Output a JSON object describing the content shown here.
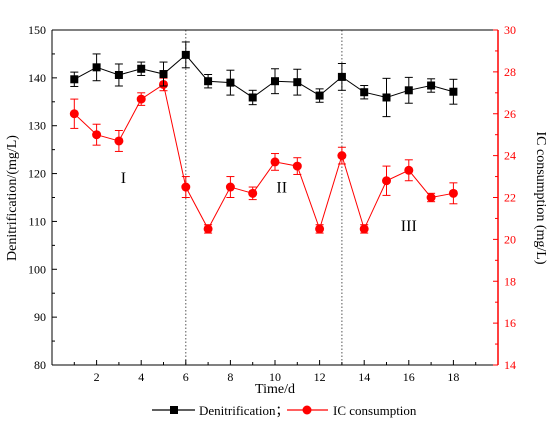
{
  "chart_data": {
    "type": "line",
    "xlabel": "Time/d",
    "ylabel_left": "Denitrification/(mg/L)",
    "ylabel_right": "IC consumption (mg/L)",
    "xlim": [
      0,
      20
    ],
    "x_ticks": [
      2,
      4,
      6,
      8,
      10,
      12,
      14,
      16,
      18
    ],
    "ylim_left": [
      80,
      150
    ],
    "y_ticks_left": [
      80,
      90,
      100,
      110,
      120,
      130,
      140,
      150
    ],
    "ylim_right": [
      14,
      30
    ],
    "y_ticks_right": [
      14,
      16,
      18,
      20,
      22,
      24,
      26,
      28,
      30
    ],
    "grid": false,
    "legend_position": "bottom",
    "phase_dividers_x": [
      6,
      13
    ],
    "phase_labels": [
      {
        "text": "I",
        "x": 3.2,
        "y_left": 118
      },
      {
        "text": "II",
        "x": 10.3,
        "y_left": 116
      },
      {
        "text": "III",
        "x": 16.0,
        "y_left": 108
      }
    ],
    "series": [
      {
        "name": "Denitrification；",
        "axis": "left",
        "color": "#000000",
        "marker": "square",
        "x": [
          1,
          2,
          3,
          4,
          5,
          6,
          7,
          8,
          9,
          10,
          11,
          12,
          13,
          14,
          15,
          16,
          17,
          18
        ],
        "values": [
          139.7,
          142.2,
          140.6,
          141.9,
          140.8,
          144.8,
          139.3,
          139.0,
          135.9,
          139.3,
          139.1,
          136.3,
          140.2,
          137.0,
          135.9,
          137.4,
          138.4,
          137.1
        ],
        "errors": [
          1.5,
          2.8,
          2.3,
          1.4,
          2.5,
          2.7,
          1.4,
          2.6,
          1.5,
          2.6,
          2.7,
          1.4,
          2.8,
          1.4,
          4.0,
          2.7,
          1.4,
          2.6
        ]
      },
      {
        "name": "IC consumption",
        "axis": "right",
        "color": "#ff0000",
        "marker": "circle",
        "x": [
          1,
          2,
          3,
          4,
          5,
          6,
          7,
          8,
          9,
          10,
          11,
          12,
          13,
          14,
          15,
          16,
          17,
          18
        ],
        "values": [
          26.0,
          25.0,
          24.7,
          26.7,
          27.4,
          22.5,
          20.5,
          22.5,
          22.2,
          23.7,
          23.5,
          20.5,
          24.0,
          20.5,
          22.8,
          23.3,
          22.0,
          22.2
        ],
        "errors": [
          0.7,
          0.5,
          0.5,
          0.3,
          0.3,
          0.5,
          0.2,
          0.5,
          0.3,
          0.4,
          0.4,
          0.2,
          0.4,
          0.2,
          0.7,
          0.5,
          0.2,
          0.5
        ]
      }
    ]
  }
}
